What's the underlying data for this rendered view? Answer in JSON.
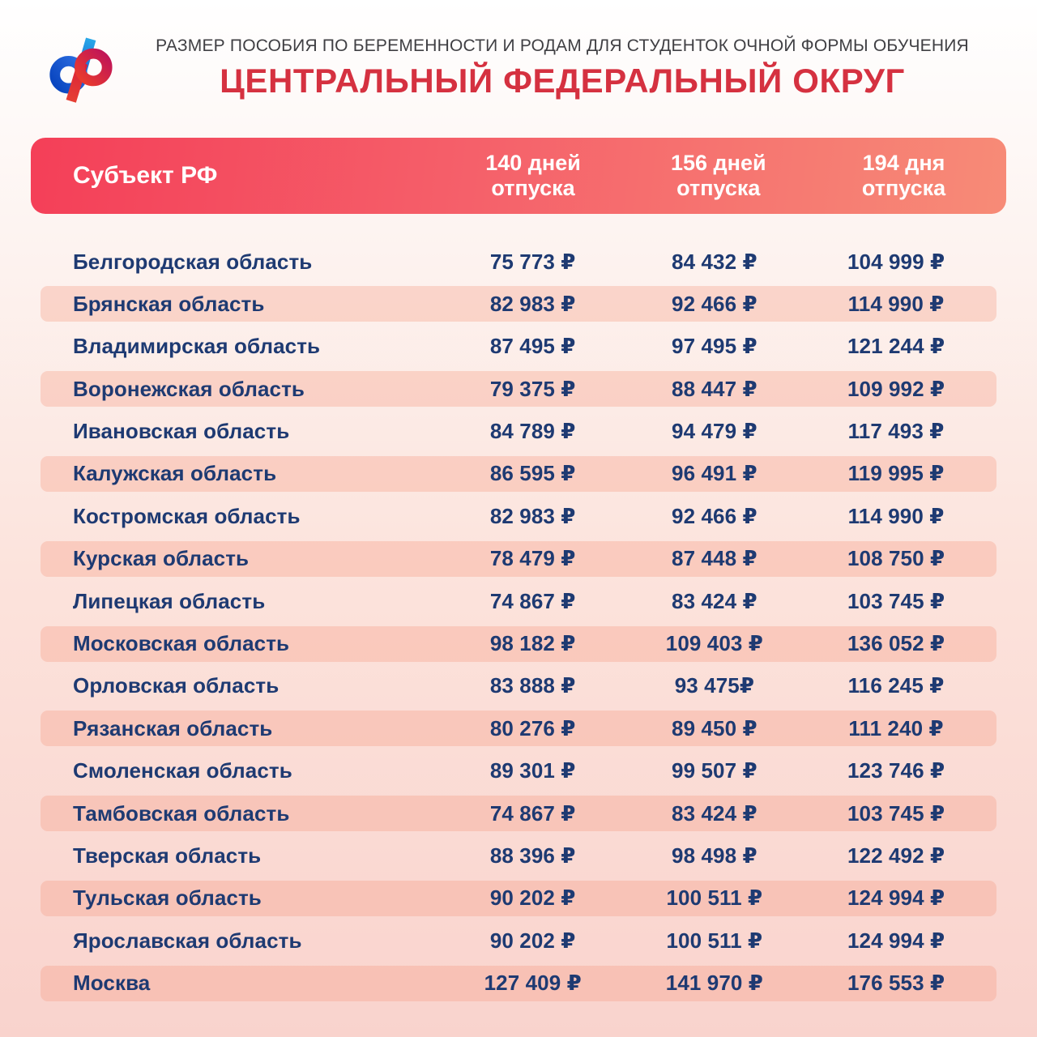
{
  "page": {
    "subtitle": "РАЗМЕР ПОСОБИЯ ПО БЕРЕМЕННОСТИ И РОДАМ ДЛЯ СТУДЕНТОК ОЧНОЙ ФОРМЫ ОБУЧЕНИЯ",
    "title": "ЦЕНТРАЛЬНЫЙ ФЕДЕРАЛЬНЫЙ ОКРУГ"
  },
  "logo": {
    "name": "Логотип Социального фонда России",
    "blue": "#1557d0",
    "cyan": "#29a8e8",
    "red": "#e8392f",
    "magenta": "#c01558"
  },
  "colors": {
    "title_red": "#d53140",
    "header_gradient_start": "#f43f58",
    "header_gradient_end": "#f78b77",
    "row_highlight": "#fbd2c7",
    "text_navy": "#1e3a72"
  },
  "table": {
    "header": {
      "region": "Субъект РФ",
      "days140": "140 дней\nотпуска",
      "days156": "156 дней\nотпуска",
      "days194": "194 дня\nотпуска"
    },
    "rows": [
      {
        "region": "Белгородская область",
        "days140": "75 773 ₽",
        "days156": "84 432 ₽",
        "days194": "104 999 ₽"
      },
      {
        "region": "Брянская область",
        "days140": "82 983 ₽",
        "days156": "92 466 ₽",
        "days194": "114 990 ₽"
      },
      {
        "region": "Владимирская область",
        "days140": "87 495 ₽",
        "days156": "97 495 ₽",
        "days194": "121 244 ₽"
      },
      {
        "region": "Воронежская область",
        "days140": "79 375 ₽",
        "days156": "88 447 ₽",
        "days194": "109 992 ₽"
      },
      {
        "region": "Ивановская область",
        "days140": "84 789 ₽",
        "days156": "94 479 ₽",
        "days194": "117 493 ₽"
      },
      {
        "region": "Калужская область",
        "days140": "86 595 ₽",
        "days156": "96 491 ₽",
        "days194": "119 995 ₽"
      },
      {
        "region": "Костромская область",
        "days140": "82 983 ₽",
        "days156": "92 466 ₽",
        "days194": "114 990 ₽"
      },
      {
        "region": "Курская область",
        "days140": "78 479 ₽",
        "days156": "87 448 ₽",
        "days194": "108 750 ₽"
      },
      {
        "region": "Липецкая область",
        "days140": "74 867 ₽",
        "days156": "83 424 ₽",
        "days194": "103 745 ₽"
      },
      {
        "region": "Московская область",
        "days140": "98 182 ₽",
        "days156": "109 403 ₽",
        "days194": "136 052 ₽"
      },
      {
        "region": "Орловская область",
        "days140": "83 888 ₽",
        "days156": "93 475₽",
        "days194": "116 245 ₽"
      },
      {
        "region": "Рязанская область",
        "days140": "80 276 ₽",
        "days156": "89 450 ₽",
        "days194": "111 240 ₽"
      },
      {
        "region": "Смоленская область",
        "days140": "89 301 ₽",
        "days156": "99 507 ₽",
        "days194": "123 746 ₽"
      },
      {
        "region": "Тамбовская область",
        "days140": "74 867 ₽",
        "days156": "83 424 ₽",
        "days194": "103 745 ₽"
      },
      {
        "region": "Тверская область",
        "days140": "88 396 ₽",
        "days156": "98 498 ₽",
        "days194": "122 492 ₽"
      },
      {
        "region": "Тульская область",
        "days140": "90 202 ₽",
        "days156": "100 511 ₽",
        "days194": "124 994 ₽"
      },
      {
        "region": "Ярославская область",
        "days140": "90 202 ₽",
        "days156": "100 511 ₽",
        "days194": "124 994 ₽"
      },
      {
        "region": "Москва",
        "days140": "127 409 ₽",
        "days156": "141 970 ₽",
        "days194": "176 553 ₽"
      }
    ]
  }
}
